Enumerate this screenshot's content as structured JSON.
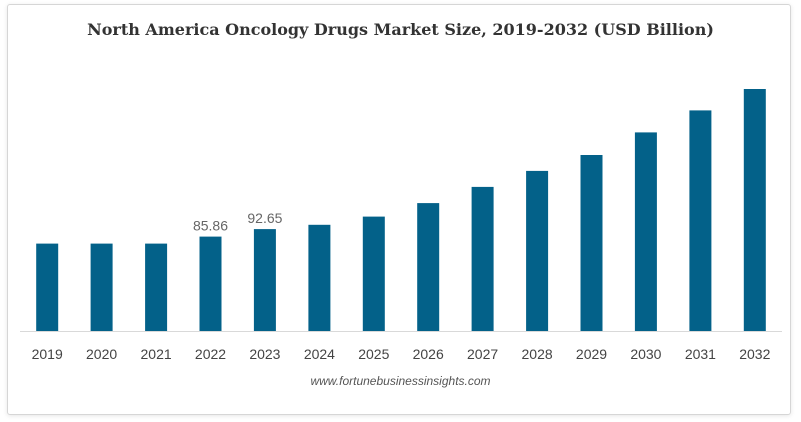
{
  "colors": {
    "bar": "#036189",
    "baseline": "#d9d9d9",
    "tick_label": "#444444",
    "data_label": "#666666"
  },
  "source": "www.fortunebusinessinsights.com",
  "chart_data": {
    "type": "bar",
    "title": "North America Oncology Drugs Market Size, 2019-2032 (USD Billion)",
    "xlabel": "",
    "ylabel": "",
    "grid": false,
    "legend": "none",
    "ylim": [
      0,
      215
    ],
    "categories": [
      "2019",
      "2020",
      "2021",
      "2022",
      "2023",
      "2024",
      "2025",
      "2026",
      "2027",
      "2028",
      "2029",
      "2030",
      "2031",
      "2032"
    ],
    "values": [
      79.5,
      79.5,
      79.5,
      85.86,
      92.65,
      96.5,
      104.0,
      116.3,
      131.0,
      145.5,
      160.0,
      180.5,
      200.5,
      220.0
    ],
    "data_labels": [
      "",
      "",
      "",
      "85.86",
      "92.65",
      "",
      "",
      "",
      "",
      "",
      "",
      "",
      "",
      ""
    ]
  }
}
